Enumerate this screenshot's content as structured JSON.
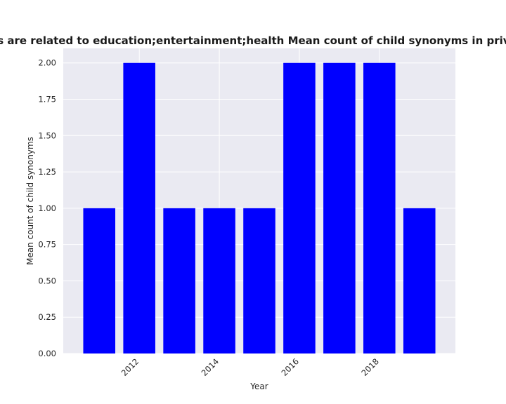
{
  "chart_data": {
    "type": "bar",
    "title": "Categories are related to education;entertainment;health Mean count of child synonyms in privacy policies",
    "xlabel": "Year",
    "ylabel": "Mean count of child synonyms",
    "x": [
      2011,
      2012,
      2013,
      2014,
      2015,
      2016,
      2017,
      2018,
      2019
    ],
    "values": [
      1,
      2,
      1,
      1,
      1,
      2,
      2,
      2,
      1
    ],
    "xticks": [
      2012,
      2014,
      2016,
      2018
    ],
    "xtick_labels": [
      "2012",
      "2014",
      "2016",
      "2018"
    ],
    "yticks": [
      0,
      0.25,
      0.5,
      0.75,
      1.0,
      1.25,
      1.5,
      1.75,
      2.0
    ],
    "ytick_labels": [
      "0.00",
      "0.25",
      "0.50",
      "0.75",
      "1.00",
      "1.25",
      "1.50",
      "1.75",
      "2.00"
    ],
    "xlim": [
      2010.1,
      2019.9
    ],
    "ylim": [
      0,
      2.1
    ],
    "grid": true,
    "bar_color": "#0000ff",
    "background_color": "#eaeaf2",
    "grid_color": "#ffffff"
  }
}
